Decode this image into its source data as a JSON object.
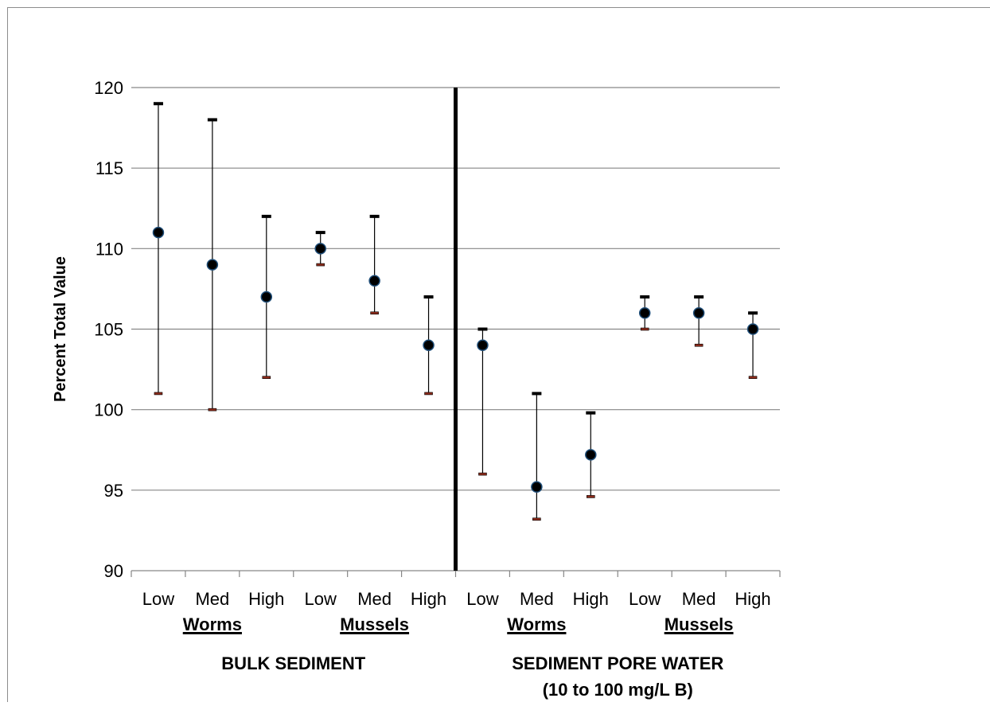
{
  "chart_data": {
    "type": "scatter",
    "title": "",
    "ylabel": "Percent Total Value",
    "xlabel": "",
    "ylim": [
      90,
      120
    ],
    "yticks": [
      90,
      95,
      100,
      105,
      110,
      115,
      120
    ],
    "grid": "horizontal",
    "divider_after_index": 5,
    "categories": [
      "Low",
      "Med",
      "High",
      "Low",
      "Med",
      "High",
      "Low",
      "Med",
      "High",
      "Low",
      "Med",
      "High"
    ],
    "mean": [
      111,
      109,
      107,
      110,
      108,
      104,
      104,
      95.2,
      97.2,
      106,
      106,
      105
    ],
    "upper": [
      119,
      118,
      112,
      111,
      112,
      107,
      105,
      101,
      99.8,
      107,
      107,
      106
    ],
    "lower": [
      101,
      100,
      102,
      109,
      106,
      101,
      96,
      93.2,
      94.6,
      105,
      104,
      102
    ],
    "groups": [
      {
        "label": "Worms",
        "start": 0,
        "end": 2
      },
      {
        "label": "Mussels",
        "start": 3,
        "end": 5
      },
      {
        "label": "Worms",
        "start": 6,
        "end": 8
      },
      {
        "label": "Mussels",
        "start": 9,
        "end": 11
      }
    ],
    "sections": [
      {
        "lines": [
          "BULK SEDIMENT"
        ],
        "start": 0,
        "end": 5
      },
      {
        "lines": [
          "SEDIMENT PORE WATER",
          "(10 to 100 mg/L B)"
        ],
        "start": 6,
        "end": 11
      }
    ],
    "colors": {
      "marker_fill": "#000000",
      "marker_edge": "#1f4e79",
      "upper_cap": "#000000",
      "lower_cap": "#8b2a1a",
      "grid": "#868686",
      "divider": "#000000"
    }
  }
}
